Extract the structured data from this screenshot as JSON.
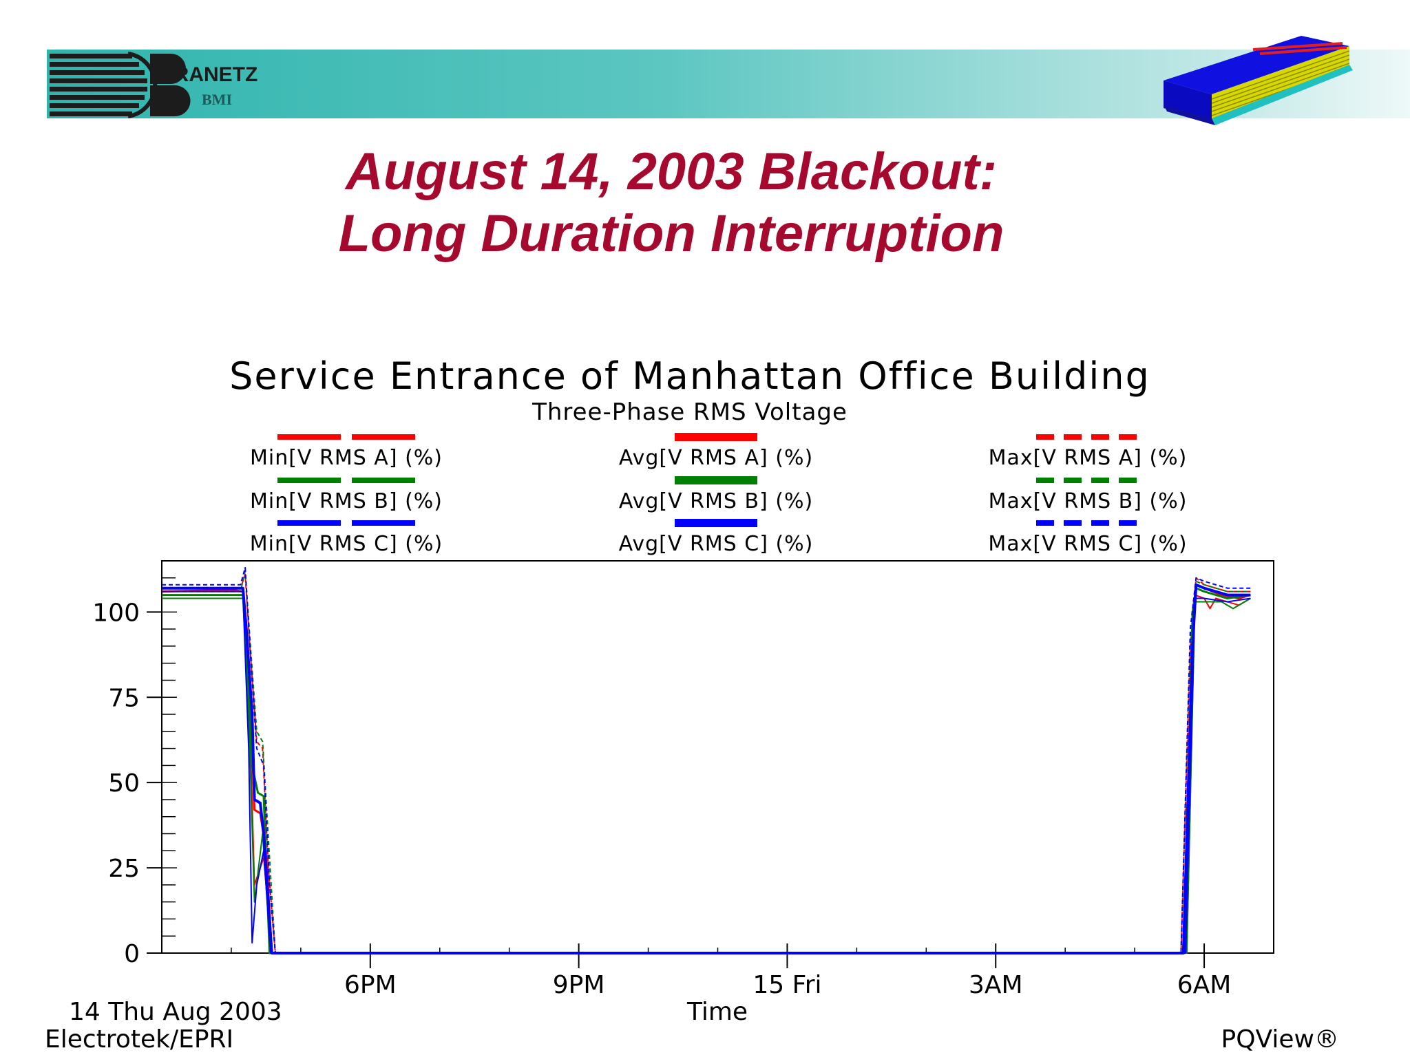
{
  "header": {
    "brand_name": "DRANETZ",
    "brand_sub": "BMI",
    "brand_color": "#1c1c1c",
    "band_color": "#2fb4ad"
  },
  "slide": {
    "title_line1": "August 14, 2003 Blackout:",
    "title_line2": "Long Duration Interruption",
    "title_color": "#a50a2e",
    "book_icon": "book-icon"
  },
  "chart_data": {
    "type": "line",
    "title": "Service Entrance of Manhattan Office Building",
    "subtitle": "Three-Phase RMS Voltage",
    "xlabel": "Time",
    "ylabel": "",
    "ylim": [
      0,
      115
    ],
    "yticks": [
      0,
      25,
      50,
      75,
      100
    ],
    "xlim": [
      "2003-08-14 15:00",
      "2003-08-15 07:00"
    ],
    "xticks": [
      {
        "label": "6PM",
        "x": "2003-08-14 18:00"
      },
      {
        "label": "9PM",
        "x": "2003-08-14 21:00"
      },
      {
        "label": "15 Fri",
        "x": "2003-08-15 00:00"
      },
      {
        "label": "3AM",
        "x": "2003-08-15 03:00"
      },
      {
        "label": "6AM",
        "x": "2003-08-15 06:00"
      }
    ],
    "date_label": "14 Thu Aug 2003",
    "source_left": "Electrotek/EPRI",
    "source_right": "PQView®",
    "grid": false,
    "legend_position": "top",
    "legend": [
      {
        "label": "Min[V RMS A] (%)",
        "color": "#ff0000",
        "style": "split"
      },
      {
        "label": "Avg[V RMS A] (%)",
        "color": "#ff0000",
        "style": "solid"
      },
      {
        "label": "Max[V RMS A] (%)",
        "color": "#ff0000",
        "style": "dashed"
      },
      {
        "label": "Min[V RMS B] (%)",
        "color": "#008000",
        "style": "split"
      },
      {
        "label": "Avg[V RMS B] (%)",
        "color": "#008000",
        "style": "solid"
      },
      {
        "label": "Max[V RMS B] (%)",
        "color": "#008000",
        "style": "dashed"
      },
      {
        "label": "Min[V RMS C] (%)",
        "color": "#0000ff",
        "style": "split"
      },
      {
        "label": "Avg[V RMS C] (%)",
        "color": "#0000ff",
        "style": "solid"
      },
      {
        "label": "Max[V RMS C] (%)",
        "color": "#0000ff",
        "style": "dashed"
      }
    ],
    "series": [
      {
        "name": "Avg[V RMS A] (%)",
        "color": "#ff0000",
        "width": 3,
        "dash": "",
        "points": [
          [
            "2003-08-14 15:00",
            106
          ],
          [
            "2003-08-14 16:00",
            106.5
          ],
          [
            "2003-08-14 16:10",
            106
          ],
          [
            "2003-08-14 16:13",
            92
          ],
          [
            "2003-08-14 16:18",
            60
          ],
          [
            "2003-08-14 16:20",
            42
          ],
          [
            "2003-08-14 16:25",
            41
          ],
          [
            "2003-08-14 16:30",
            30
          ],
          [
            "2003-08-14 16:35",
            0
          ],
          [
            "2003-08-15 05:42",
            0
          ],
          [
            "2003-08-15 05:50",
            98
          ],
          [
            "2003-08-15 05:53",
            108
          ],
          [
            "2003-08-15 06:00",
            107
          ],
          [
            "2003-08-15 06:15",
            105
          ],
          [
            "2003-08-15 06:30",
            104
          ],
          [
            "2003-08-15 06:40",
            105
          ]
        ]
      },
      {
        "name": "Min[V RMS A] (%)",
        "color": "#ff0000",
        "width": 2,
        "dash": "",
        "points": [
          [
            "2003-08-14 15:00",
            105
          ],
          [
            "2003-08-14 16:10",
            105
          ],
          [
            "2003-08-14 16:15",
            80
          ],
          [
            "2003-08-14 16:20",
            20
          ],
          [
            "2003-08-14 16:28",
            28
          ],
          [
            "2003-08-14 16:35",
            0
          ],
          [
            "2003-08-15 05:45",
            0
          ],
          [
            "2003-08-15 05:52",
            105
          ],
          [
            "2003-08-15 06:00",
            104
          ],
          [
            "2003-08-15 06:05",
            101
          ],
          [
            "2003-08-15 06:10",
            104
          ],
          [
            "2003-08-15 06:30",
            102
          ],
          [
            "2003-08-15 06:40",
            104
          ]
        ]
      },
      {
        "name": "Max[V RMS A] (%)",
        "color": "#ff0000",
        "width": 2,
        "dash": "6,4",
        "points": [
          [
            "2003-08-14 15:00",
            107
          ],
          [
            "2003-08-14 16:08",
            107
          ],
          [
            "2003-08-14 16:12",
            111
          ],
          [
            "2003-08-14 16:16",
            90
          ],
          [
            "2003-08-14 16:22",
            62
          ],
          [
            "2003-08-14 16:27",
            60
          ],
          [
            "2003-08-14 16:32",
            25
          ],
          [
            "2003-08-14 16:38",
            0
          ],
          [
            "2003-08-15 05:40",
            0
          ],
          [
            "2003-08-15 05:48",
            90
          ],
          [
            "2003-08-15 05:53",
            110
          ],
          [
            "2003-08-15 06:00",
            108
          ],
          [
            "2003-08-15 06:20",
            106
          ],
          [
            "2003-08-15 06:40",
            106
          ]
        ]
      },
      {
        "name": "Avg[V RMS B] (%)",
        "color": "#008000",
        "width": 3,
        "dash": "",
        "points": [
          [
            "2003-08-14 15:00",
            105
          ],
          [
            "2003-08-14 16:10",
            105
          ],
          [
            "2003-08-14 16:13",
            93
          ],
          [
            "2003-08-14 16:18",
            55
          ],
          [
            "2003-08-14 16:23",
            47
          ],
          [
            "2003-08-14 16:28",
            46
          ],
          [
            "2003-08-14 16:33",
            0
          ],
          [
            "2003-08-15 05:43",
            0
          ],
          [
            "2003-08-15 05:50",
            100
          ],
          [
            "2003-08-15 05:53",
            107
          ],
          [
            "2003-08-15 06:00",
            106
          ],
          [
            "2003-08-15 06:20",
            104
          ],
          [
            "2003-08-15 06:40",
            105
          ]
        ]
      },
      {
        "name": "Min[V RMS B] (%)",
        "color": "#008000",
        "width": 2,
        "dash": "",
        "points": [
          [
            "2003-08-14 15:00",
            104
          ],
          [
            "2003-08-14 16:10",
            104
          ],
          [
            "2003-08-14 16:15",
            70
          ],
          [
            "2003-08-14 16:20",
            15
          ],
          [
            "2003-08-14 16:27",
            35
          ],
          [
            "2003-08-14 16:34",
            0
          ],
          [
            "2003-08-15 05:45",
            0
          ],
          [
            "2003-08-15 05:52",
            103
          ],
          [
            "2003-08-15 06:00",
            103
          ],
          [
            "2003-08-15 06:15",
            103
          ],
          [
            "2003-08-15 06:25",
            101
          ],
          [
            "2003-08-15 06:40",
            104
          ]
        ]
      },
      {
        "name": "Max[V RMS B] (%)",
        "color": "#008000",
        "width": 2,
        "dash": "6,4",
        "points": [
          [
            "2003-08-14 15:00",
            106
          ],
          [
            "2003-08-14 16:08",
            106
          ],
          [
            "2003-08-14 16:12",
            112
          ],
          [
            "2003-08-14 16:17",
            88
          ],
          [
            "2003-08-14 16:22",
            65
          ],
          [
            "2003-08-14 16:27",
            62
          ],
          [
            "2003-08-14 16:33",
            28
          ],
          [
            "2003-08-14 16:38",
            0
          ],
          [
            "2003-08-15 05:40",
            0
          ],
          [
            "2003-08-15 05:48",
            92
          ],
          [
            "2003-08-15 05:53",
            109
          ],
          [
            "2003-08-15 06:00",
            108
          ],
          [
            "2003-08-15 06:20",
            106
          ],
          [
            "2003-08-15 06:40",
            106
          ]
        ]
      },
      {
        "name": "Avg[V RMS C] (%)",
        "color": "#0000ff",
        "width": 4,
        "dash": "",
        "points": [
          [
            "2003-08-14 15:00",
            107
          ],
          [
            "2003-08-14 16:10",
            107
          ],
          [
            "2003-08-14 16:13",
            95
          ],
          [
            "2003-08-14 16:18",
            70
          ],
          [
            "2003-08-14 16:20",
            45
          ],
          [
            "2003-08-14 16:25",
            44
          ],
          [
            "2003-08-14 16:28",
            35
          ],
          [
            "2003-08-14 16:35",
            0
          ],
          [
            "2003-08-15 05:42",
            0
          ],
          [
            "2003-08-15 05:50",
            90
          ],
          [
            "2003-08-15 05:53",
            108
          ],
          [
            "2003-08-15 06:00",
            107
          ],
          [
            "2003-08-15 06:20",
            105
          ],
          [
            "2003-08-15 06:40",
            105
          ]
        ]
      },
      {
        "name": "Min[V RMS C] (%)",
        "color": "#0000ff",
        "width": 2,
        "dash": "",
        "points": [
          [
            "2003-08-14 15:00",
            106
          ],
          [
            "2003-08-14 16:10",
            106
          ],
          [
            "2003-08-14 16:15",
            60
          ],
          [
            "2003-08-14 16:18",
            3
          ],
          [
            "2003-08-14 16:22",
            20
          ],
          [
            "2003-08-14 16:28",
            30
          ],
          [
            "2003-08-14 16:34",
            0
          ],
          [
            "2003-08-15 05:44",
            0
          ],
          [
            "2003-08-15 05:52",
            104
          ],
          [
            "2003-08-15 06:00",
            104
          ],
          [
            "2003-08-15 06:20",
            103
          ],
          [
            "2003-08-15 06:40",
            104
          ]
        ]
      },
      {
        "name": "Max[V RMS C] (%)",
        "color": "#0000ff",
        "width": 2,
        "dash": "6,4",
        "points": [
          [
            "2003-08-14 15:00",
            108
          ],
          [
            "2003-08-14 16:08",
            108
          ],
          [
            "2003-08-14 16:12",
            113
          ],
          [
            "2003-08-14 16:17",
            85
          ],
          [
            "2003-08-14 16:22",
            60
          ],
          [
            "2003-08-14 16:28",
            55
          ],
          [
            "2003-08-14 16:33",
            20
          ],
          [
            "2003-08-14 16:38",
            0
          ],
          [
            "2003-08-15 05:40",
            0
          ],
          [
            "2003-08-15 05:48",
            95
          ],
          [
            "2003-08-15 05:53",
            110
          ],
          [
            "2003-08-15 06:00",
            109
          ],
          [
            "2003-08-15 06:20",
            107
          ],
          [
            "2003-08-15 06:40",
            107
          ]
        ]
      }
    ]
  }
}
